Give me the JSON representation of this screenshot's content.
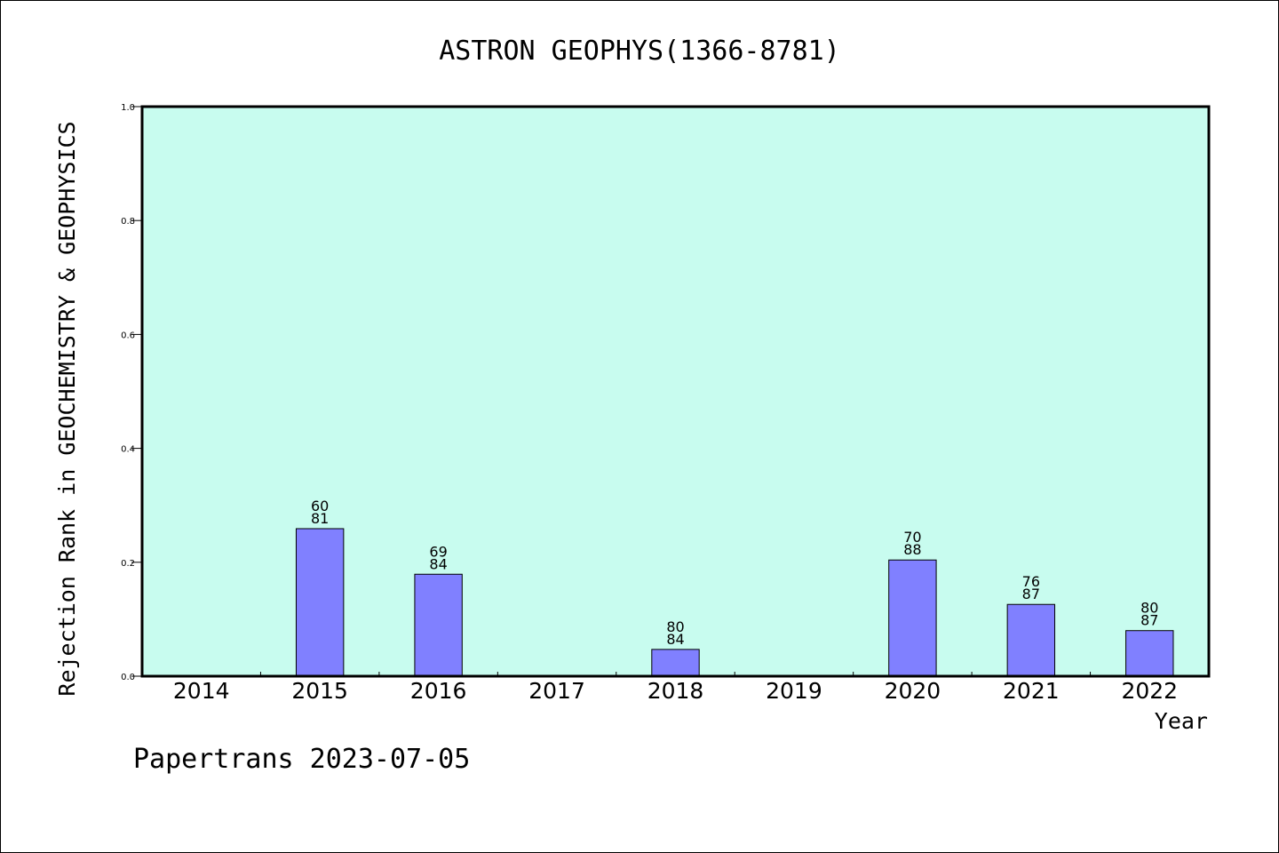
{
  "chart_data": {
    "type": "bar",
    "title": "ASTRON GEOPHYS(1366-8781)",
    "xlabel": "Year",
    "ylabel": "Rejection Rank in GEOCHEMISTRY & GEOPHYSICS",
    "categories": [
      "2014",
      "2015",
      "2016",
      "2017",
      "2018",
      "2019",
      "2020",
      "2021",
      "2022"
    ],
    "values": [
      0,
      0.259,
      0.179,
      0,
      0.047,
      0,
      0.204,
      0.126,
      0.08
    ],
    "bar_labels": [
      null,
      {
        "top": "60",
        "bottom": "81"
      },
      {
        "top": "69",
        "bottom": "84"
      },
      null,
      {
        "top": "80",
        "bottom": "84"
      },
      null,
      {
        "top": "70",
        "bottom": "88"
      },
      {
        "top": "76",
        "bottom": "87"
      },
      {
        "top": "80",
        "bottom": "87"
      }
    ],
    "ylim": [
      0,
      1.0
    ],
    "yticks": [
      "0.0",
      "0.2",
      "0.4",
      "0.6",
      "0.8",
      "1.0"
    ],
    "grid": false,
    "colors": {
      "plot_background": "#c8fcef",
      "bar_fill": "#8080ff",
      "bar_stroke": "#000000"
    }
  },
  "footer": {
    "text": "Papertrans 2023-07-05"
  }
}
